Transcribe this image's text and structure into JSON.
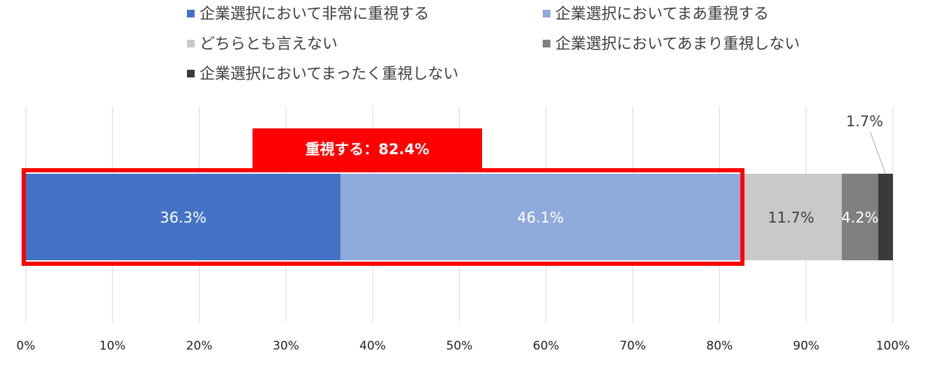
{
  "chart_data": {
    "type": "bar",
    "orientation": "horizontal-stacked",
    "x_ticks": [
      "0%",
      "10%",
      "20%",
      "30%",
      "40%",
      "50%",
      "60%",
      "70%",
      "80%",
      "90%",
      "100%"
    ],
    "xlim": [
      0,
      100
    ],
    "grid": true,
    "legend_position": "top",
    "series": [
      {
        "name": "企業選択において非常に重視する",
        "value": 36.3,
        "label": "36.3%",
        "color": "#4472c4",
        "label_color": "#ffffff"
      },
      {
        "name": "企業選択においてまあ重視する",
        "value": 46.1,
        "label": "46.1%",
        "color": "#8faadc",
        "label_color": "#ffffff"
      },
      {
        "name": "どちらとも言えない",
        "value": 11.7,
        "label": "11.7%",
        "color": "#c9c9c9",
        "label_color": "#404040"
      },
      {
        "name": "企業選択においてあまり重視しない",
        "value": 4.2,
        "label": "4.2%",
        "color": "#7f7f7f",
        "label_color": "#ffffff"
      },
      {
        "name": "企業選択においてまったく重視しない",
        "value": 1.7,
        "label": "1.7%",
        "color": "#3a3a3a",
        "label_color": "#404040"
      }
    ],
    "annotation": {
      "text": "重視する：82.4%",
      "value": 82.4,
      "color": "#ff0000"
    }
  }
}
